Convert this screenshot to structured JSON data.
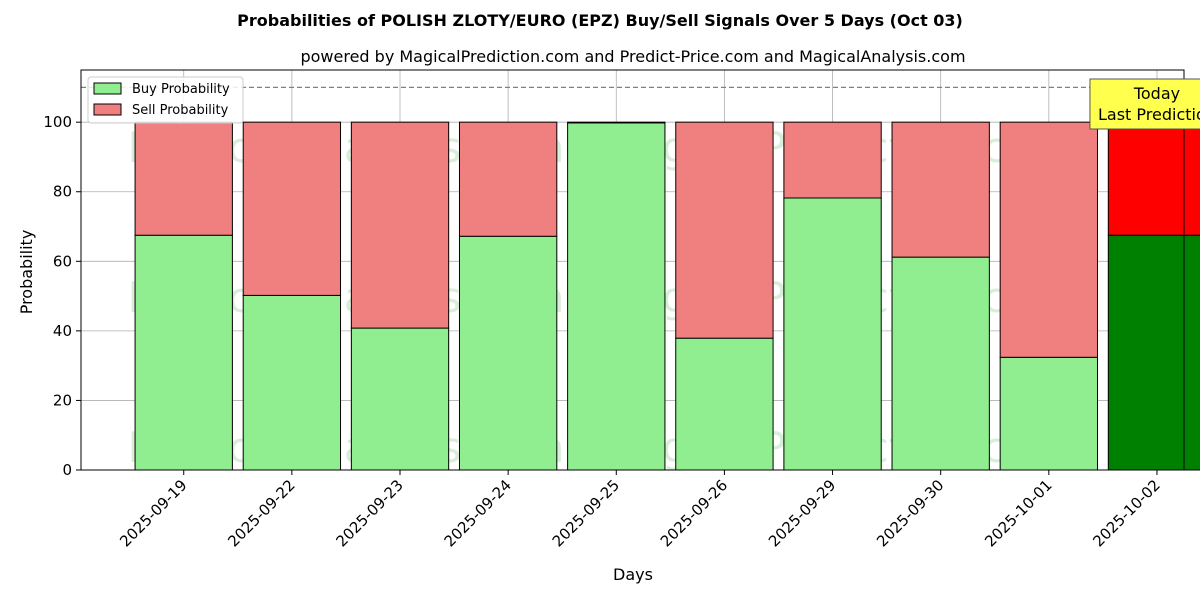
{
  "chart_data": {
    "type": "bar",
    "stacked": true,
    "title": "Probabilities of POLISH ZLOTY/EURO (EPZ) Buy/Sell Signals Over 5 Days (Oct 03)",
    "subtitle": "powered by MagicalPrediction.com and Predict-Price.com and MagicalAnalysis.com",
    "xlabel": "Days",
    "ylabel": "Probability",
    "ylim": [
      0,
      115
    ],
    "yticks": [
      0,
      20,
      40,
      60,
      80,
      100
    ],
    "grid": true,
    "legend_position": "top-left",
    "reference_line": {
      "y": 110,
      "style": "dashed",
      "color": "#808080"
    },
    "categories": [
      "2025-09-19",
      "2025-09-22",
      "2025-09-23",
      "2025-09-24",
      "2025-09-25",
      "2025-09-26",
      "2025-09-29",
      "2025-09-30",
      "2025-10-01",
      "2025-10-02"
    ],
    "series": [
      {
        "name": "Buy Probability",
        "color": "#90ee90",
        "highlight_color": "#008000",
        "values": [
          67.5,
          50.2,
          40.8,
          67.2,
          99.8,
          37.9,
          78.2,
          61.2,
          32.4,
          67.5
        ]
      },
      {
        "name": "Sell Probability",
        "color": "#f08080",
        "highlight_color": "#ff0000",
        "values": [
          32.5,
          49.8,
          59.2,
          32.8,
          0.2,
          62.1,
          21.8,
          38.8,
          67.6,
          32.5
        ]
      }
    ],
    "highlight_index": 9,
    "annotation": {
      "lines": [
        "Today",
        "Last Prediction"
      ],
      "box_color": "#ffff4d"
    },
    "watermarks": [
      "MagicalAnalysis.com",
      "MagicalPrediction.com"
    ]
  }
}
